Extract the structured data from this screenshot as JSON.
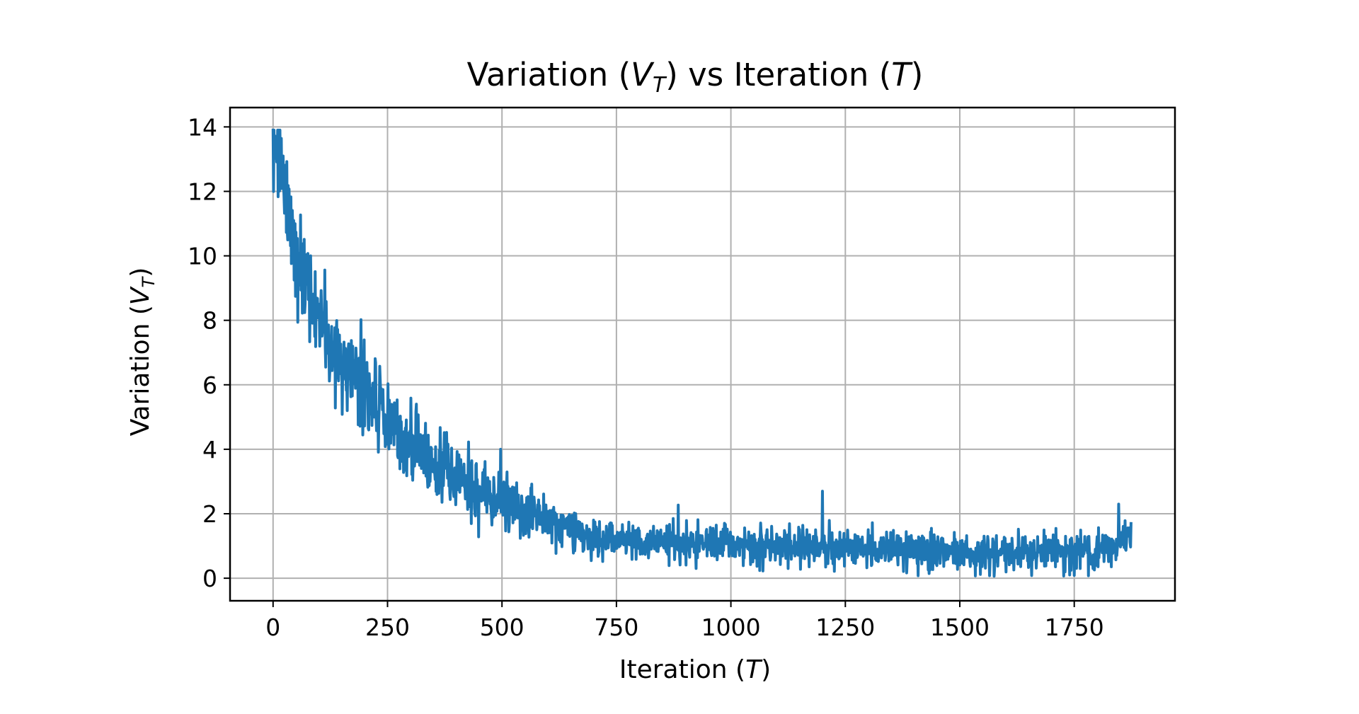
{
  "chart_data": {
    "type": "line",
    "title": {
      "prefix": "Variation (",
      "math_main": "V",
      "math_sub": "T",
      "middle": ") vs Iteration (",
      "math_end": "T",
      "suffix": ")"
    },
    "xlabel": {
      "prefix": "Iteration (",
      "math": "T",
      "suffix": ")"
    },
    "ylabel": {
      "prefix": "Variation (",
      "math_main": "V",
      "math_sub": "T",
      "suffix": ")"
    },
    "xlim": [
      -94,
      1970
    ],
    "ylim": [
      -0.7,
      14.6
    ],
    "xticks": [
      0,
      250,
      500,
      750,
      1000,
      1250,
      1500,
      1750
    ],
    "xtick_labels": [
      "0",
      "250",
      "500",
      "750",
      "1000",
      "1250",
      "1500",
      "1750"
    ],
    "yticks": [
      0,
      2,
      4,
      6,
      8,
      10,
      12,
      14
    ],
    "ytick_labels": [
      "0",
      "2",
      "4",
      "6",
      "8",
      "10",
      "12",
      "14"
    ],
    "grid": true,
    "legend": "none",
    "series": [
      {
        "color": "#1f77b4",
        "x_start": 0,
        "x_end": 1874,
        "trend": {
          "comment": "V(T) ≈ 0.9 + 12.0 * exp(-T / 190), with noise amplitude shrinking from about 1.6 near T=0 to about 0.6 by T=700 and after"
        },
        "sample_points": [
          {
            "x": 0,
            "y": 13.8
          },
          {
            "x": 25,
            "y": 12.0
          },
          {
            "x": 50,
            "y": 10.0
          },
          {
            "x": 75,
            "y": 9.0
          },
          {
            "x": 100,
            "y": 7.8
          },
          {
            "x": 150,
            "y": 6.8
          },
          {
            "x": 200,
            "y": 6.0
          },
          {
            "x": 250,
            "y": 4.8
          },
          {
            "x": 300,
            "y": 4.2
          },
          {
            "x": 350,
            "y": 3.6
          },
          {
            "x": 400,
            "y": 3.0
          },
          {
            "x": 450,
            "y": 2.6
          },
          {
            "x": 500,
            "y": 2.5
          },
          {
            "x": 550,
            "y": 2.0
          },
          {
            "x": 600,
            "y": 1.8
          },
          {
            "x": 650,
            "y": 1.5
          },
          {
            "x": 700,
            "y": 1.2
          },
          {
            "x": 750,
            "y": 1.2
          },
          {
            "x": 800,
            "y": 1.1
          },
          {
            "x": 900,
            "y": 1.1
          },
          {
            "x": 1000,
            "y": 1.0
          },
          {
            "x": 1100,
            "y": 1.0
          },
          {
            "x": 1200,
            "y": 1.0
          },
          {
            "x": 1300,
            "y": 0.9
          },
          {
            "x": 1400,
            "y": 0.9
          },
          {
            "x": 1500,
            "y": 0.8
          },
          {
            "x": 1600,
            "y": 0.8
          },
          {
            "x": 1700,
            "y": 0.9
          },
          {
            "x": 1800,
            "y": 0.8
          },
          {
            "x": 1874,
            "y": 1.4
          }
        ],
        "notable_spikes": [
          {
            "x": 2,
            "y": 13.9
          },
          {
            "x": 20,
            "y": 13.0
          },
          {
            "x": 82,
            "y": 10.0
          },
          {
            "x": 313,
            "y": 5.4
          },
          {
            "x": 497,
            "y": 4.0
          },
          {
            "x": 1200,
            "y": 2.7
          },
          {
            "x": 1847,
            "y": 2.3
          }
        ]
      }
    ]
  }
}
